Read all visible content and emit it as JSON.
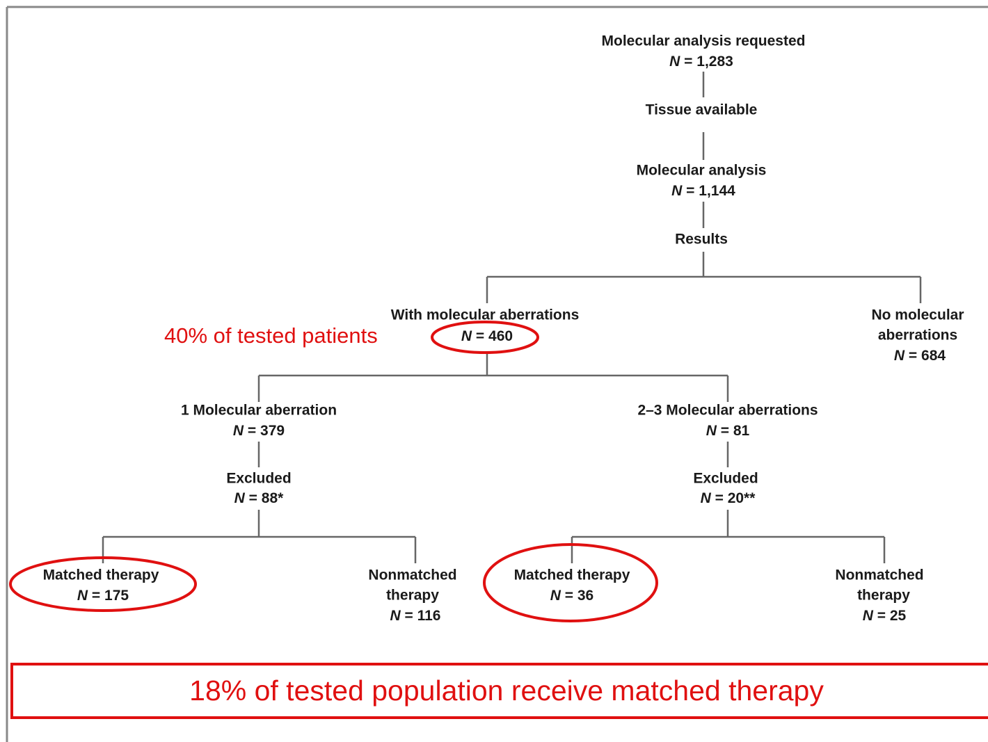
{
  "nodes": [
    {
      "label": "Molecular analysis requested",
      "count": "N = 1,283"
    },
    {
      "label": "Tissue available"
    },
    {
      "label": "Molecular analysis",
      "count": "N = 1,144"
    },
    {
      "label": "Results"
    },
    {
      "label": "With molecular aberrations",
      "count": "N = 460"
    },
    {
      "label_lines": [
        "No molecular",
        "aberrations"
      ],
      "count": "N = 684"
    },
    {
      "label": "1 Molecular aberration",
      "count": "N = 379"
    },
    {
      "label": "Excluded",
      "count": "N = 88*"
    },
    {
      "label": "Matched therapy",
      "count": "N = 175"
    },
    {
      "label_lines": [
        "Nonmatched",
        "therapy"
      ],
      "count": "N = 116"
    },
    {
      "label": "2–3 Molecular aberrations",
      "count": "N = 81"
    },
    {
      "label": "Excluded",
      "count": "N = 20**"
    },
    {
      "label": "Matched therapy",
      "count": "N = 36"
    },
    {
      "label_lines": [
        "Nonmatched",
        "therapy"
      ],
      "count": "N = 25"
    }
  ],
  "annotations": {
    "tested_share": "40% of tested patients",
    "summary": "18% of tested population receive matched therapy"
  }
}
